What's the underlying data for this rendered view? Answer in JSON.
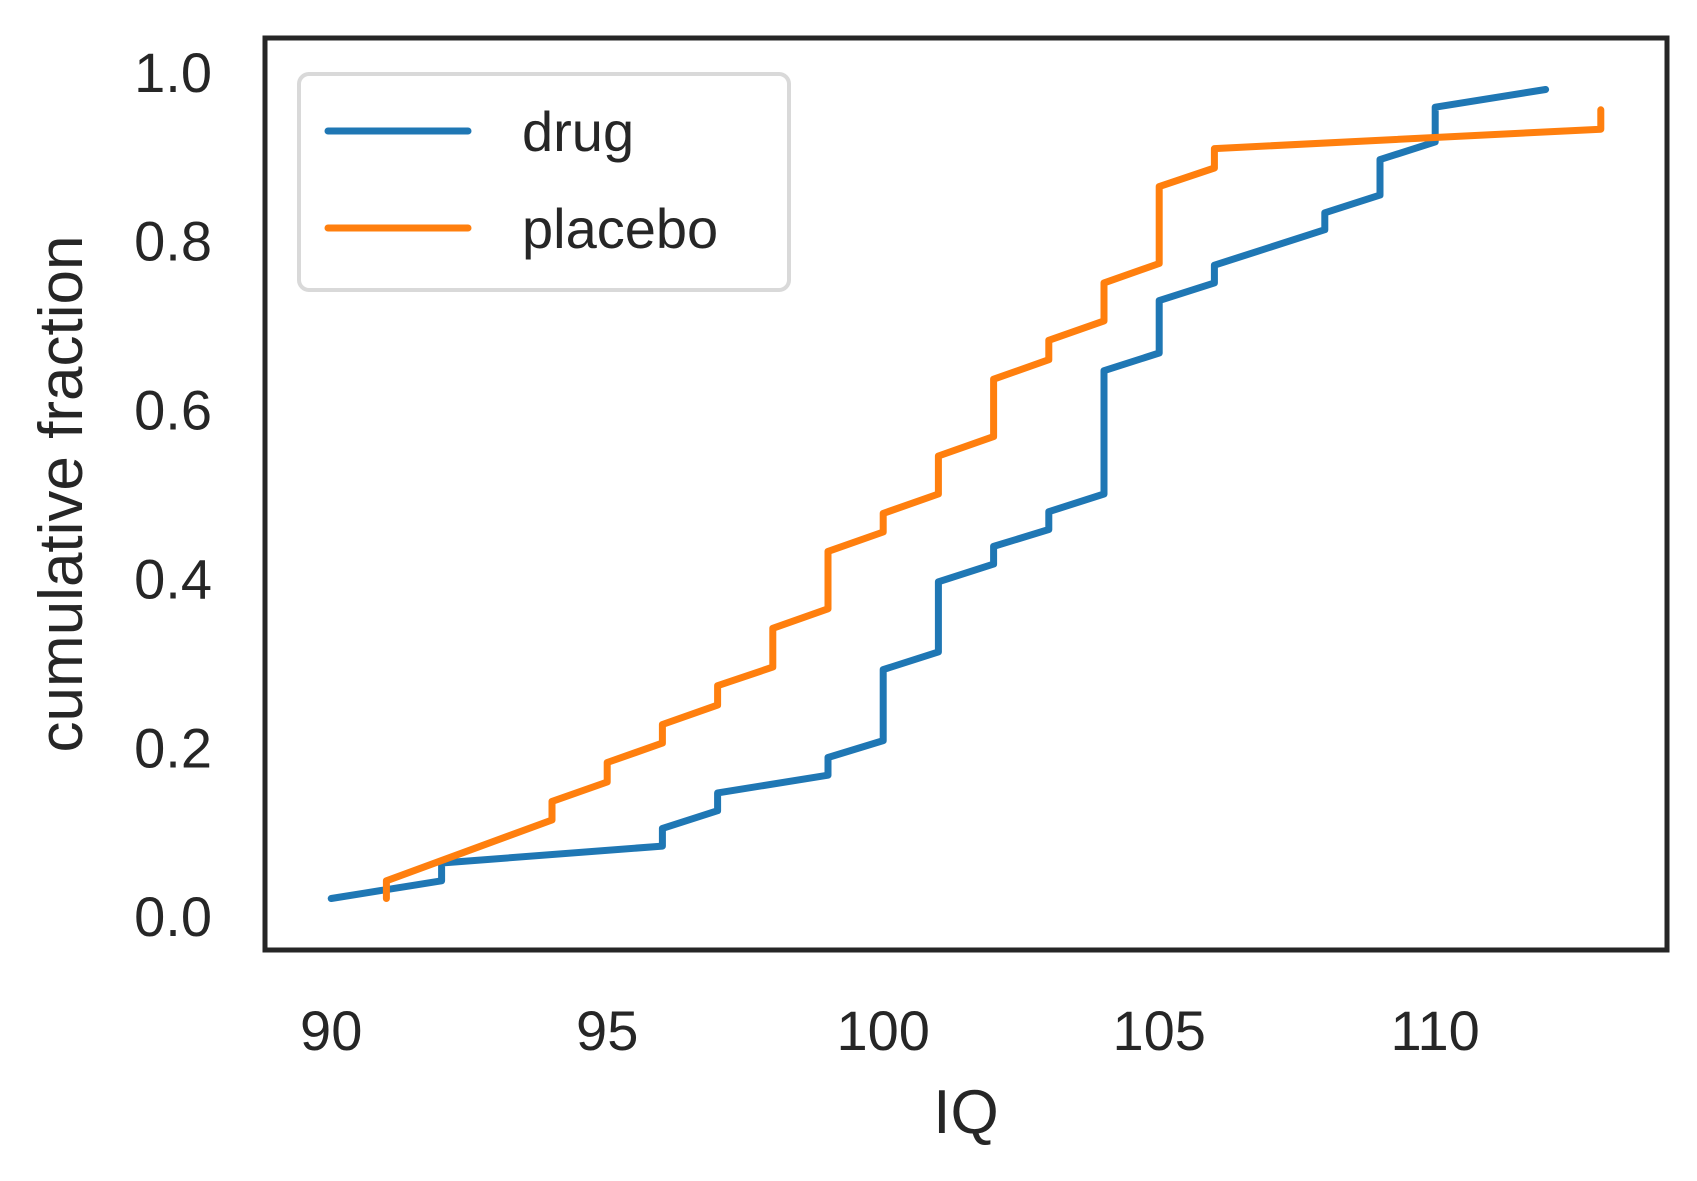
{
  "chart_data": {
    "type": "line",
    "title": "",
    "xlabel": "IQ",
    "ylabel": "cumulative fraction",
    "xlim": [
      88.8,
      114.2
    ],
    "ylim": [
      -0.04,
      1.04
    ],
    "x_ticks": [
      90,
      95,
      100,
      105,
      110
    ],
    "x_tick_labels": [
      "90",
      "95",
      "100",
      "105",
      "110"
    ],
    "y_ticks": [
      0.0,
      0.2,
      0.4,
      0.6,
      0.8,
      1.0
    ],
    "y_tick_labels": [
      "0.0",
      "0.2",
      "0.4",
      "0.6",
      "0.8",
      "1.0"
    ],
    "grid": false,
    "legend": {
      "placement": "upper-left",
      "entries": [
        "drug",
        "placebo"
      ]
    },
    "series": [
      {
        "name": "drug",
        "color": "#1f77b4",
        "points": [
          [
            90,
            0.021
          ],
          [
            92,
            0.042
          ],
          [
            92,
            0.063
          ],
          [
            96,
            0.083
          ],
          [
            96,
            0.104
          ],
          [
            97,
            0.125
          ],
          [
            97,
            0.146
          ],
          [
            99,
            0.167
          ],
          [
            99,
            0.188
          ],
          [
            100,
            0.208
          ],
          [
            100,
            0.292
          ],
          [
            101,
            0.313
          ],
          [
            101,
            0.396
          ],
          [
            102,
            0.417
          ],
          [
            102,
            0.438
          ],
          [
            103,
            0.458
          ],
          [
            103,
            0.479
          ],
          [
            104,
            0.5
          ],
          [
            104,
            0.646
          ],
          [
            105,
            0.667
          ],
          [
            105,
            0.729
          ],
          [
            106,
            0.75
          ],
          [
            106,
            0.771
          ],
          [
            108,
            0.813
          ],
          [
            108,
            0.833
          ],
          [
            109,
            0.854
          ],
          [
            109,
            0.896
          ],
          [
            110,
            0.917
          ],
          [
            110,
            0.958
          ],
          [
            112,
            0.979
          ]
        ]
      },
      {
        "name": "placebo",
        "color": "#ff7f0e",
        "points": [
          [
            91,
            0.021
          ],
          [
            91,
            0.042
          ],
          [
            94,
            0.114
          ],
          [
            94,
            0.136
          ],
          [
            95,
            0.159
          ],
          [
            95,
            0.182
          ],
          [
            96,
            0.205
          ],
          [
            96,
            0.227
          ],
          [
            97,
            0.25
          ],
          [
            97,
            0.273
          ],
          [
            98,
            0.295
          ],
          [
            98,
            0.341
          ],
          [
            99,
            0.364
          ],
          [
            99,
            0.432
          ],
          [
            100,
            0.455
          ],
          [
            100,
            0.477
          ],
          [
            101,
            0.5
          ],
          [
            101,
            0.545
          ],
          [
            102,
            0.568
          ],
          [
            102,
            0.636
          ],
          [
            103,
            0.659
          ],
          [
            103,
            0.682
          ],
          [
            104,
            0.705
          ],
          [
            104,
            0.75
          ],
          [
            105,
            0.773
          ],
          [
            105,
            0.864
          ],
          [
            106,
            0.886
          ],
          [
            106,
            0.909
          ],
          [
            113,
            0.932
          ],
          [
            113,
            0.955
          ]
        ]
      }
    ]
  }
}
